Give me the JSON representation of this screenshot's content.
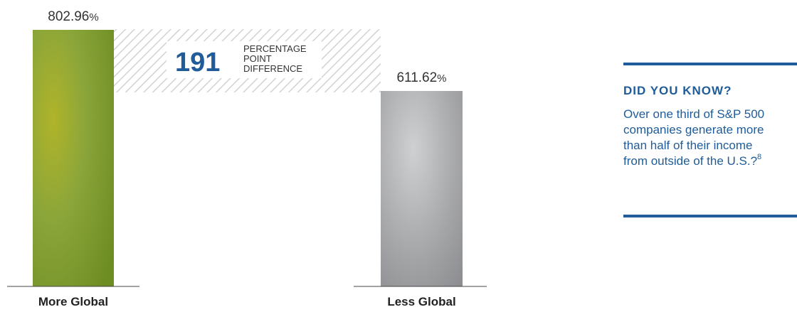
{
  "chart_data": {
    "type": "bar",
    "categories": [
      "More Global",
      "Less Global"
    ],
    "values": [
      802.96,
      611.62
    ],
    "value_labels": [
      "802.96",
      "611.62"
    ],
    "value_unit": "%",
    "colors": [
      "#8aa53a",
      "#a8a9ab"
    ],
    "grid": false
  },
  "difference": {
    "number": "191",
    "line1": "PERCENTAGE",
    "line2": "POINT",
    "line3": "DIFFERENCE"
  },
  "sidebar": {
    "title": "DID YOU KNOW?",
    "text": "Over one third of S&P 500 companies generate more than half of their income from outside of the U.S.?",
    "footnote": "8",
    "accent_color": "#1f5c99"
  }
}
